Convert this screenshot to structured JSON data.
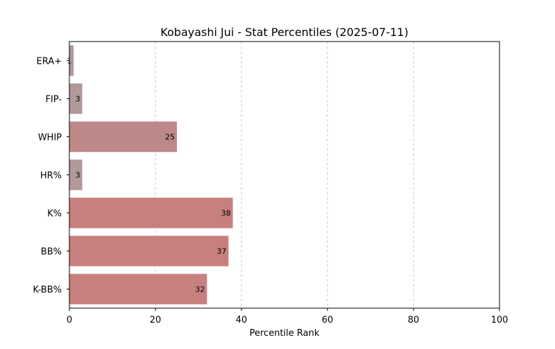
{
  "chart_data": {
    "type": "bar",
    "orientation": "horizontal",
    "title": "Kobayashi Jui - Stat Percentiles (2025-07-11)",
    "xlabel": "Percentile Rank",
    "ylabel": "",
    "xlim": [
      0,
      100
    ],
    "xticks": [
      0,
      20,
      40,
      60,
      80,
      100
    ],
    "grid": "x-dashed",
    "categories": [
      "ERA+",
      "FIP-",
      "WHIP",
      "HR%",
      "K%",
      "BB%",
      "K-BB%"
    ],
    "values": [
      1,
      3,
      25,
      3,
      38,
      37,
      32
    ],
    "bar_colors": [
      "#b19899",
      "#b19899",
      "#bd8888",
      "#b19899",
      "#c8807e",
      "#c8807e",
      "#c8807e"
    ]
  }
}
